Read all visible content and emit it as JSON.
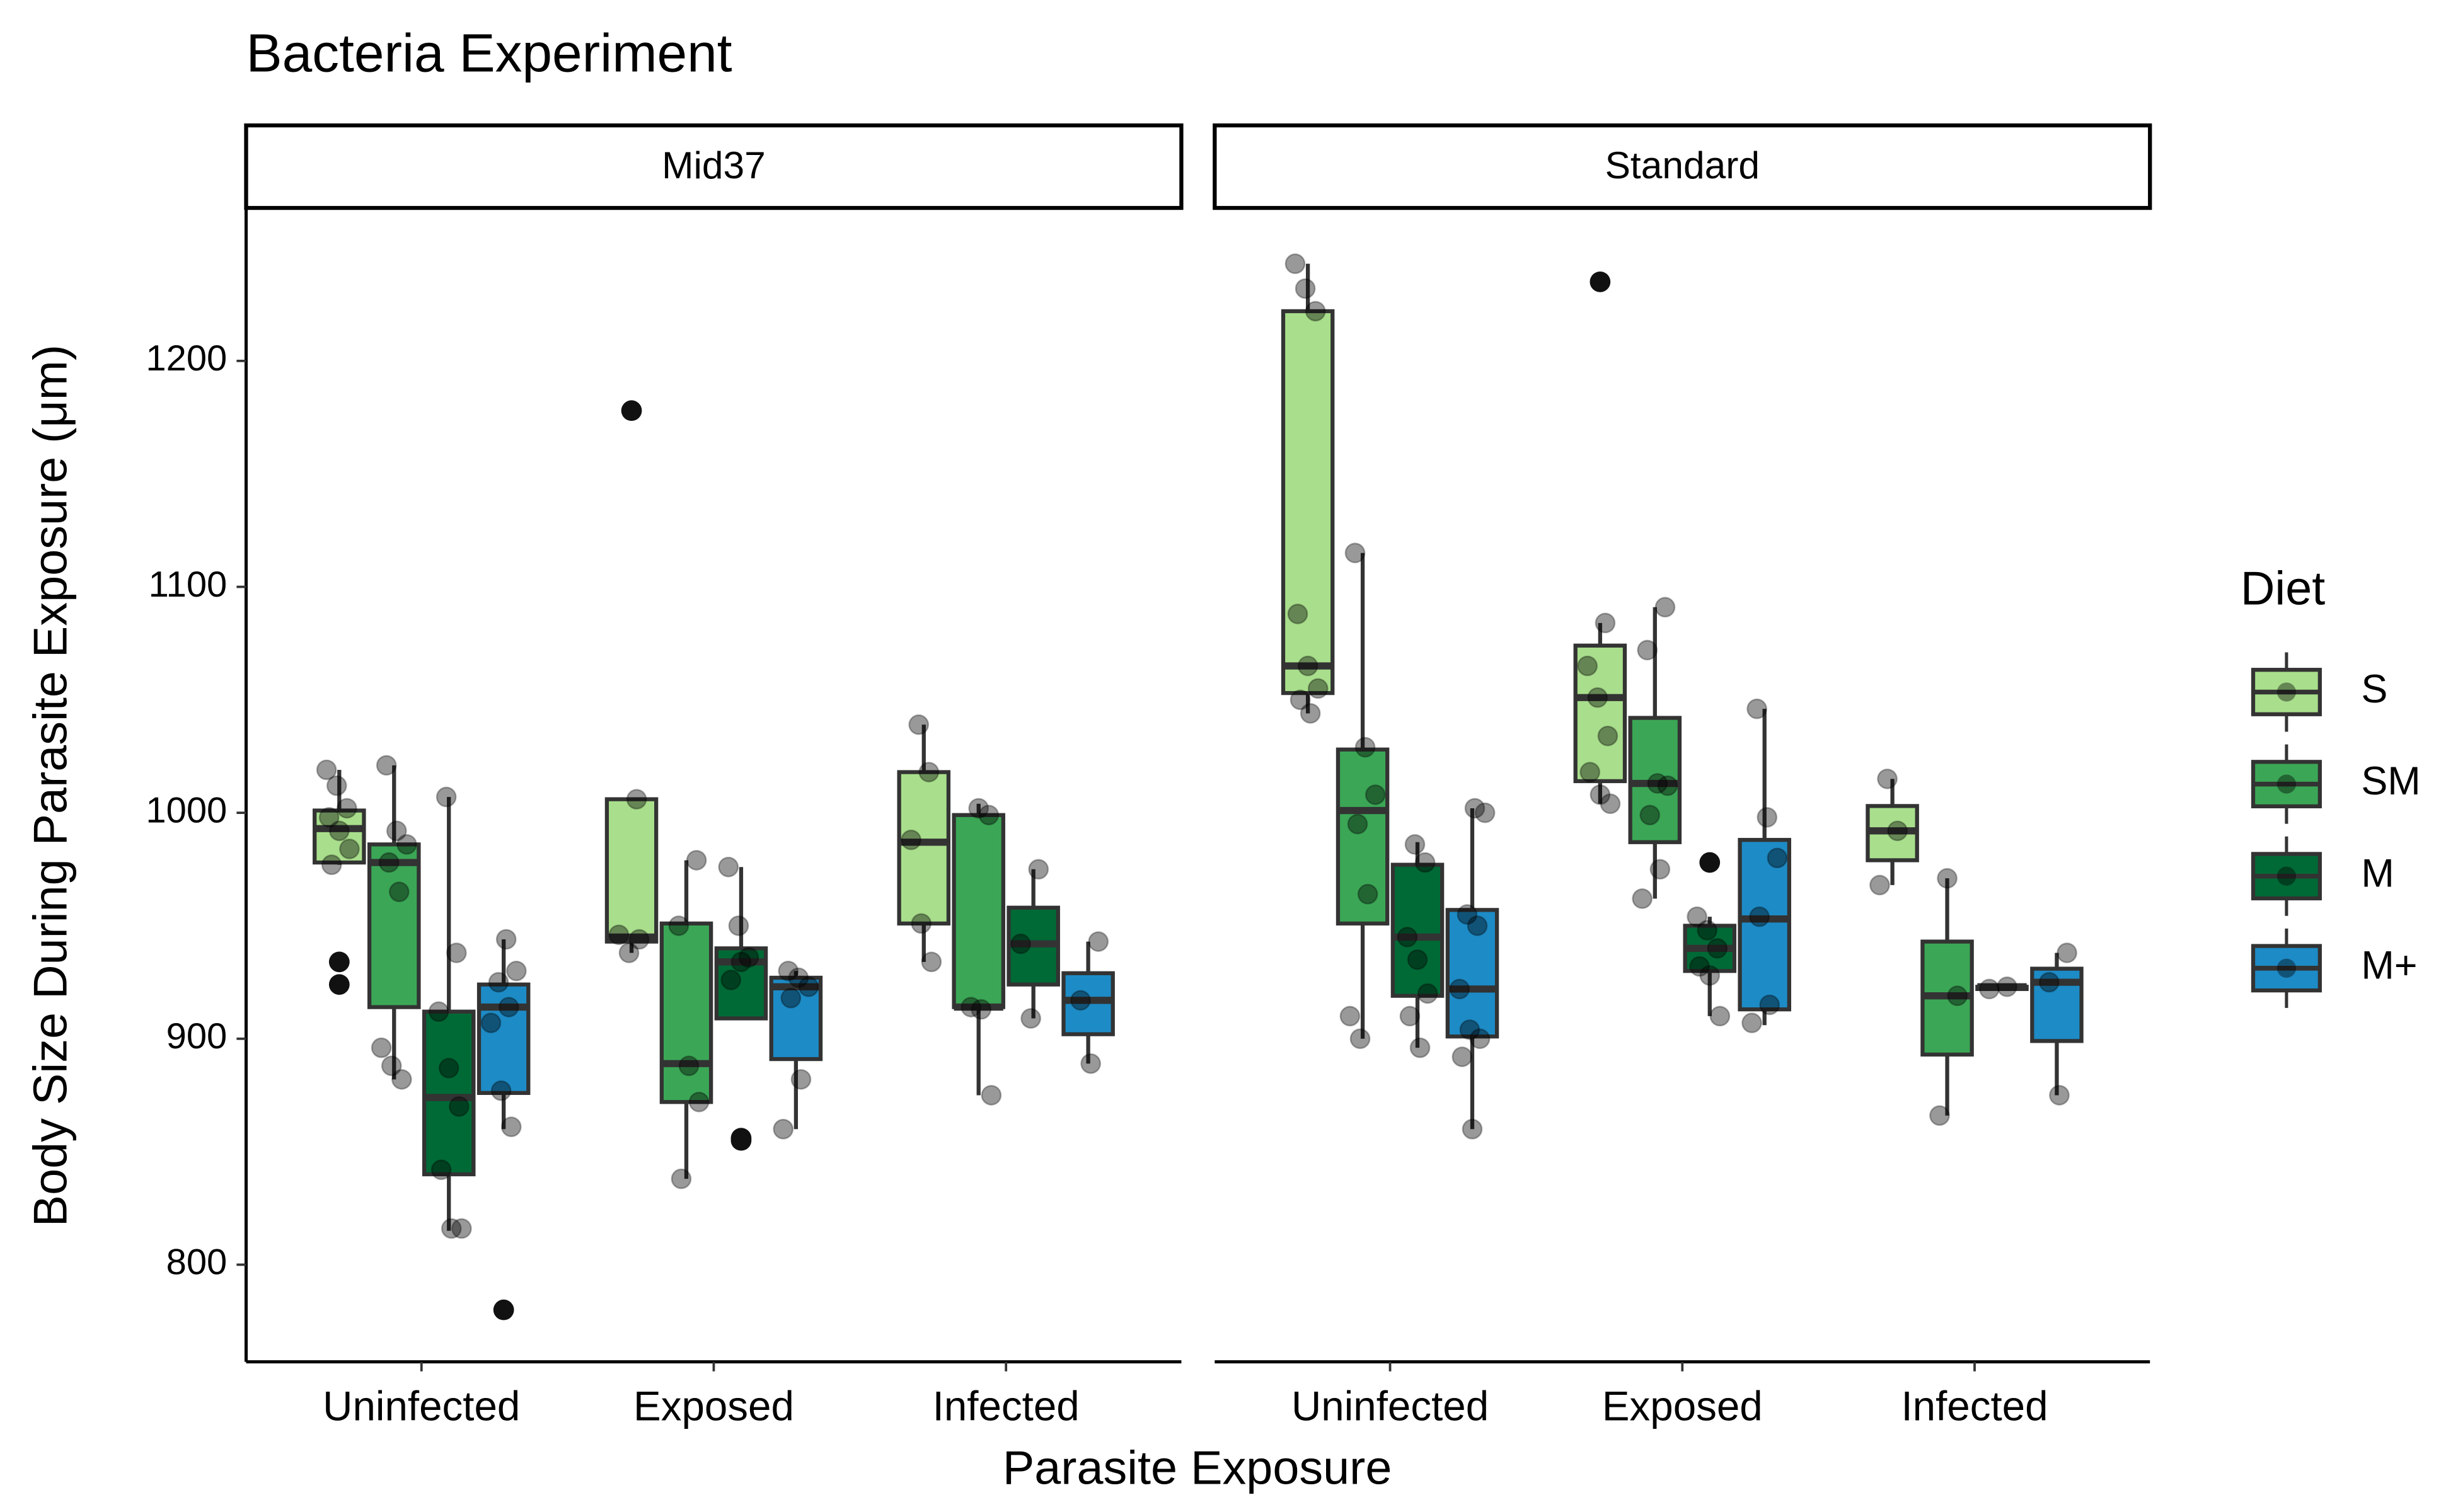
{
  "chart_data": {
    "type": "box",
    "title": "Bacteria Experiment",
    "xlabel": "Parasite Exposure",
    "ylabel": "Body Size During Parasite Exposure (μm)",
    "legend_title": "Diet",
    "categories": [
      "Uninfected",
      "Exposed",
      "Infected"
    ],
    "ylim": [
      757,
      1267
    ],
    "yticks": [
      800,
      900,
      1000,
      1100,
      1200
    ],
    "series": [
      {
        "name": "S",
        "color": "#a9df8c"
      },
      {
        "name": "SM",
        "color": "#3ba756"
      },
      {
        "name": "M",
        "color": "#006a36"
      },
      {
        "name": "M+",
        "color": "#1d8bc6"
      }
    ],
    "panels": [
      {
        "name": "Mid37",
        "groups": [
          [
            {
              "min": 977,
              "q1": 978,
              "median": 993,
              "q3": 1001,
              "max": 1019,
              "outliers": [
                934,
                924
              ],
              "points": [
                1019,
                1012,
                1002,
                998,
                992,
                984,
                977
              ]
            },
            {
              "min": 882,
              "q1": 914,
              "median": 978,
              "q3": 986,
              "max": 1021,
              "points": [
                1021,
                992,
                986,
                978,
                965,
                896,
                888,
                882
              ]
            },
            {
              "min": 815,
              "q1": 840,
              "median": 874,
              "q3": 912,
              "max": 1007,
              "points": [
                1007,
                938,
                912,
                887,
                870,
                842,
                816,
                816
              ]
            },
            {
              "min": 860,
              "q1": 876,
              "median": 914,
              "q3": 924,
              "max": 944,
              "outliers": [
                780
              ],
              "points": [
                944,
                930,
                925,
                914,
                907,
                877,
                861
              ]
            }
          ],
          [
            {
              "min": 938,
              "q1": 943,
              "median": 945,
              "q3": 1006,
              "max": 1006,
              "outliers": [
                1178
              ],
              "points": [
                1006,
                946,
                938,
                944
              ]
            },
            {
              "min": 838,
              "q1": 872,
              "median": 889,
              "q3": 951,
              "max": 979,
              "points": [
                979,
                950,
                888,
                872,
                838
              ]
            },
            {
              "min": 909,
              "q1": 909,
              "median": 934,
              "q3": 940,
              "max": 976,
              "outliers": [
                856,
                855
              ],
              "points": [
                976,
                950,
                936,
                926,
                934
              ]
            },
            {
              "min": 860,
              "q1": 891,
              "median": 923,
              "q3": 927,
              "max": 930,
              "points": [
                930,
                927,
                923,
                918,
                882,
                860
              ]
            }
          ],
          [
            {
              "min": 934,
              "q1": 951,
              "median": 987,
              "q3": 1018,
              "max": 1039,
              "points": [
                1039,
                1018,
                988,
                951,
                934
              ]
            },
            {
              "min": 875,
              "q1": 914,
              "median": 914,
              "q3": 999,
              "max": 1004,
              "points": [
                1002,
                999,
                914,
                913,
                875
              ]
            },
            {
              "min": 909,
              "q1": 924,
              "median": 942,
              "q3": 958,
              "max": 975,
              "points": [
                975,
                942,
                909
              ]
            },
            {
              "min": 889,
              "q1": 902,
              "median": 917,
              "q3": 929,
              "max": 943,
              "points": [
                943,
                917,
                889
              ]
            }
          ]
        ]
      },
      {
        "name": "Standard",
        "groups": [
          [
            {
              "min": 1044,
              "q1": 1053,
              "median": 1065,
              "q3": 1222,
              "max": 1243,
              "points": [
                1243,
                1232,
                1222,
                1088,
                1065,
                1055,
                1050,
                1044
              ]
            },
            {
              "min": 900,
              "q1": 951,
              "median": 1001,
              "q3": 1028,
              "max": 1115,
              "points": [
                1115,
                1029,
                1008,
                995,
                964,
                910,
                900
              ]
            },
            {
              "min": 896,
              "q1": 919,
              "median": 945,
              "q3": 977,
              "max": 987,
              "points": [
                986,
                978,
                945,
                935,
                920,
                910,
                896
              ]
            },
            {
              "min": 860,
              "q1": 901,
              "median": 922,
              "q3": 957,
              "max": 1002,
              "points": [
                1002,
                1000,
                955,
                950,
                922,
                904,
                900,
                892,
                860
              ]
            }
          ],
          [
            {
              "min": 1004,
              "q1": 1014,
              "median": 1051,
              "q3": 1074,
              "max": 1084,
              "outliers": [
                1235
              ],
              "points": [
                1084,
                1065,
                1051,
                1034,
                1018,
                1008,
                1004
              ]
            },
            {
              "min": 962,
              "q1": 987,
              "median": 1013,
              "q3": 1042,
              "max": 1091,
              "points": [
                1091,
                1072,
                1013,
                1012,
                999,
                975,
                962
              ]
            },
            {
              "min": 910,
              "q1": 930,
              "median": 940,
              "q3": 950,
              "max": 954,
              "outliers": [
                978
              ],
              "points": [
                954,
                948,
                940,
                932,
                928,
                910
              ]
            },
            {
              "min": 906,
              "q1": 913,
              "median": 953,
              "q3": 988,
              "max": 1046,
              "points": [
                1046,
                998,
                980,
                954,
                915,
                907
              ]
            }
          ],
          [
            {
              "min": 968,
              "q1": 979,
              "median": 992,
              "q3": 1003,
              "max": 1015,
              "points": [
                1015,
                992,
                968
              ]
            },
            {
              "min": 866,
              "q1": 893,
              "median": 919,
              "q3": 943,
              "max": 971,
              "points": [
                971,
                919,
                866
              ]
            },
            {
              "min": 922,
              "q1": 922,
              "median": 923,
              "q3": 923,
              "max": 923,
              "points": [
                923,
                922
              ]
            },
            {
              "min": 875,
              "q1": 899,
              "median": 925,
              "q3": 931,
              "max": 938,
              "points": [
                938,
                925,
                875
              ]
            }
          ]
        ]
      }
    ]
  }
}
